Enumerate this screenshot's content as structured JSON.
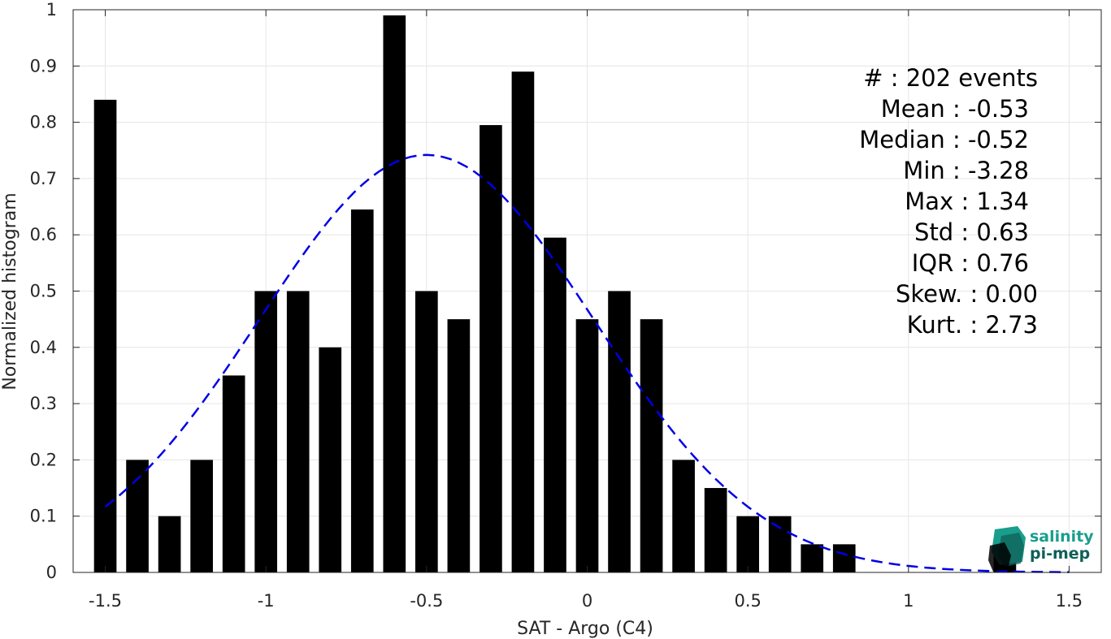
{
  "chart_data": {
    "type": "bar",
    "xlabel": "SAT - Argo (C4)",
    "ylabel": "Normalized histogram",
    "xlim": [
      -1.6,
      1.6
    ],
    "ylim": [
      0,
      1
    ],
    "grid": true,
    "xticks": [
      -1.5,
      -1,
      -0.5,
      0,
      0.5,
      1,
      1.5
    ],
    "xtick_labels": [
      "-1.5",
      "-1",
      "-0.5",
      "0",
      "0.5",
      "1",
      "1.5"
    ],
    "yticks": [
      0,
      0.1,
      0.2,
      0.3,
      0.4,
      0.5,
      0.6,
      0.7,
      0.8,
      0.9,
      1
    ],
    "ytick_labels": [
      "0",
      "0.1",
      "0.2",
      "0.3",
      "0.4",
      "0.5",
      "0.6",
      "0.7",
      "0.8",
      "0.9",
      "1"
    ],
    "bar_width": 0.07,
    "bar_color": "#000000",
    "bars": [
      {
        "x": -1.5,
        "y": 0.84
      },
      {
        "x": -1.4,
        "y": 0.2
      },
      {
        "x": -1.3,
        "y": 0.1
      },
      {
        "x": -1.2,
        "y": 0.2
      },
      {
        "x": -1.1,
        "y": 0.35
      },
      {
        "x": -1.0,
        "y": 0.5
      },
      {
        "x": -0.9,
        "y": 0.5
      },
      {
        "x": -0.8,
        "y": 0.4
      },
      {
        "x": -0.7,
        "y": 0.645
      },
      {
        "x": -0.6,
        "y": 0.99
      },
      {
        "x": -0.5,
        "y": 0.5
      },
      {
        "x": -0.4,
        "y": 0.45
      },
      {
        "x": -0.3,
        "y": 0.795
      },
      {
        "x": -0.2,
        "y": 0.89
      },
      {
        "x": -0.1,
        "y": 0.595
      },
      {
        "x": 0.0,
        "y": 0.45
      },
      {
        "x": 0.1,
        "y": 0.5
      },
      {
        "x": 0.2,
        "y": 0.45
      },
      {
        "x": 0.3,
        "y": 0.2
      },
      {
        "x": 0.4,
        "y": 0.15
      },
      {
        "x": 0.5,
        "y": 0.1
      },
      {
        "x": 0.6,
        "y": 0.1
      },
      {
        "x": 0.7,
        "y": 0.05
      },
      {
        "x": 0.8,
        "y": 0.05
      },
      {
        "x": 1.3,
        "y": 0.05
      }
    ],
    "fit_curve": {
      "style": "dashed",
      "color": "#0000e6",
      "mean": -0.5,
      "peak": 0.742,
      "std": 0.52,
      "x_range": [
        -1.5,
        1.5
      ]
    }
  },
  "stats": [
    "#  : 202 events",
    "Mean : -0.53",
    "Median : -0.52",
    "Min : -3.28",
    "Max : 1.34",
    "Std : 0.63",
    "IQR : 0.76",
    "Skew. : 0.00",
    "Kurt. : 2.73"
  ],
  "logo": {
    "line1": "salinity",
    "line2": "pi-mep",
    "color": "#1a9e8c",
    "dark_color": "#0f5f58"
  }
}
